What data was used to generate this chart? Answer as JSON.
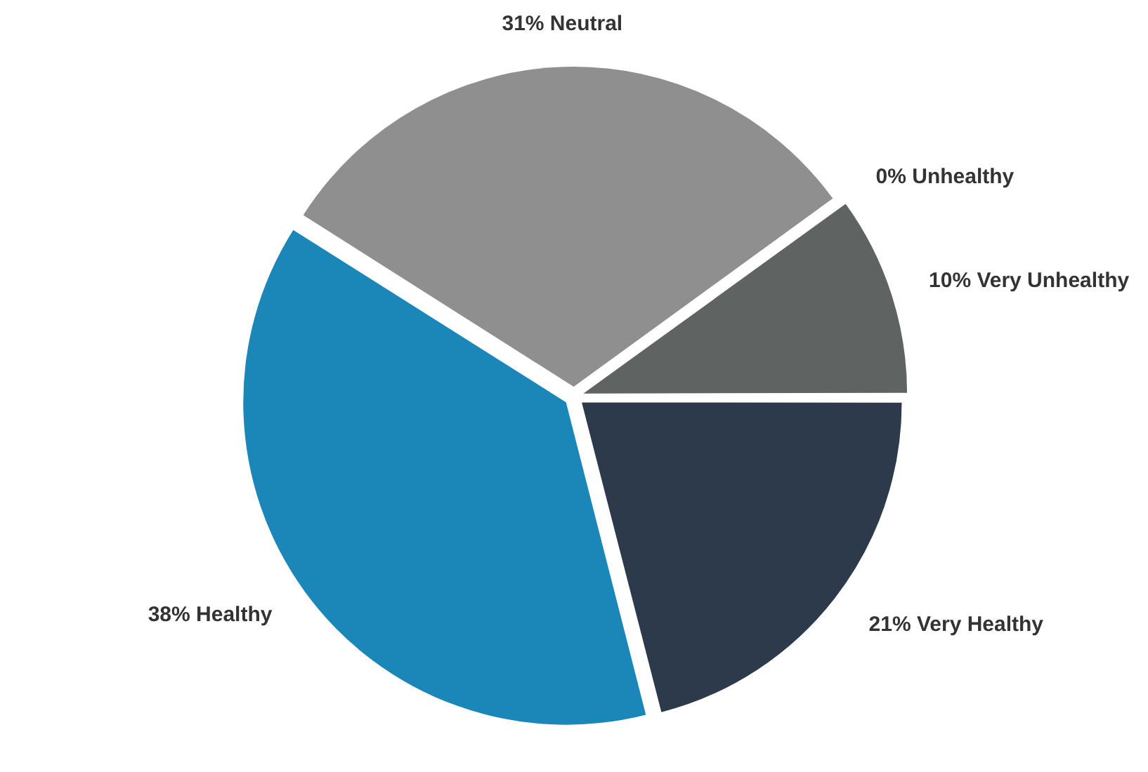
{
  "chart_data": {
    "type": "pie",
    "categories": [
      "Neutral",
      "Unhealthy",
      "Very Unhealthy",
      "Very Healthy",
      "Healthy"
    ],
    "values": [
      31,
      0,
      10,
      21,
      38
    ],
    "value_labels": [
      "31%",
      "0%",
      "10%",
      "21%",
      "38%"
    ],
    "colors": [
      "#8f8f8f",
      "#1a1a1a",
      "#5f6362",
      "#2c3a4c",
      "#1b86b8"
    ],
    "legend": false
  }
}
